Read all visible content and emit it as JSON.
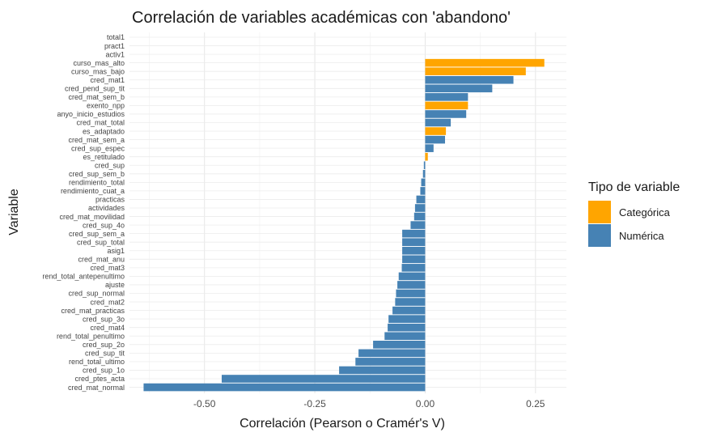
{
  "chart_data": {
    "type": "bar",
    "orientation": "horizontal",
    "title": "Correlación de variables académicas con 'abandono'",
    "xlabel": "Correlación (Pearson o Cramér's V)",
    "ylabel": "Variable",
    "xlim": [
      -0.67,
      0.32
    ],
    "xticks": [
      -0.5,
      -0.25,
      0.0,
      0.25
    ],
    "xtick_labels": [
      "-0.50",
      "-0.25",
      "0.00",
      "0.25"
    ],
    "grid": true,
    "legend": {
      "title": "Tipo de variable",
      "position": "right",
      "entries": [
        {
          "label": "Categórica",
          "color": "#FFA500"
        },
        {
          "label": "Numérica",
          "color": "#4682B4"
        }
      ]
    },
    "colors": {
      "Categórica": "#FFA500",
      "Numérica": "#4682B4"
    },
    "bars": [
      {
        "variable": "total1",
        "value": 0.0,
        "type": "Numérica"
      },
      {
        "variable": "pract1",
        "value": 0.0,
        "type": "Numérica"
      },
      {
        "variable": "activ1",
        "value": 0.0,
        "type": "Numérica"
      },
      {
        "variable": "curso_mas_alto",
        "value": 0.27,
        "type": "Categórica"
      },
      {
        "variable": "curso_mas_bajo",
        "value": 0.228,
        "type": "Categórica"
      },
      {
        "variable": "cred_mat1",
        "value": 0.2,
        "type": "Numérica"
      },
      {
        "variable": "cred_pend_sup_tit",
        "value": 0.152,
        "type": "Numérica"
      },
      {
        "variable": "cred_mat_sem_b",
        "value": 0.097,
        "type": "Numérica"
      },
      {
        "variable": "exento_npp",
        "value": 0.097,
        "type": "Categórica"
      },
      {
        "variable": "anyo_inicio_estudios",
        "value": 0.093,
        "type": "Numérica"
      },
      {
        "variable": "cred_mat_total",
        "value": 0.058,
        "type": "Numérica"
      },
      {
        "variable": "es_adaptado",
        "value": 0.047,
        "type": "Categórica"
      },
      {
        "variable": "cred_mat_sem_a",
        "value": 0.045,
        "type": "Numérica"
      },
      {
        "variable": "cred_sup_espec",
        "value": 0.019,
        "type": "Numérica"
      },
      {
        "variable": "es_retitulado",
        "value": 0.006,
        "type": "Categórica"
      },
      {
        "variable": "cred_sup",
        "value": -0.003,
        "type": "Numérica"
      },
      {
        "variable": "cred_sup_sem_b",
        "value": -0.005,
        "type": "Numérica"
      },
      {
        "variable": "rendimiento_total",
        "value": -0.009,
        "type": "Numérica"
      },
      {
        "variable": "rendimiento_cuat_a",
        "value": -0.011,
        "type": "Numérica"
      },
      {
        "variable": "practicas",
        "value": -0.02,
        "type": "Numérica"
      },
      {
        "variable": "actividades",
        "value": -0.023,
        "type": "Numérica"
      },
      {
        "variable": "cred_mat_movilidad",
        "value": -0.025,
        "type": "Numérica"
      },
      {
        "variable": "cred_sup_4o",
        "value": -0.033,
        "type": "Numérica"
      },
      {
        "variable": "cred_sup_sem_a",
        "value": -0.052,
        "type": "Numérica"
      },
      {
        "variable": "cred_sup_total",
        "value": -0.052,
        "type": "Numérica"
      },
      {
        "variable": "asig1",
        "value": -0.052,
        "type": "Numérica"
      },
      {
        "variable": "cred_mat_anu",
        "value": -0.052,
        "type": "Numérica"
      },
      {
        "variable": "cred_mat3",
        "value": -0.053,
        "type": "Numérica"
      },
      {
        "variable": "rend_total_antepenultimo",
        "value": -0.06,
        "type": "Numérica"
      },
      {
        "variable": "ajuste",
        "value": -0.063,
        "type": "Numérica"
      },
      {
        "variable": "cred_sup_normal",
        "value": -0.066,
        "type": "Numérica"
      },
      {
        "variable": "cred_mat2",
        "value": -0.068,
        "type": "Numérica"
      },
      {
        "variable": "cred_mat_practicas",
        "value": -0.074,
        "type": "Numérica"
      },
      {
        "variable": "cred_sup_3o",
        "value": -0.083,
        "type": "Numérica"
      },
      {
        "variable": "cred_mat4",
        "value": -0.085,
        "type": "Numérica"
      },
      {
        "variable": "rend_total_penultimo",
        "value": -0.092,
        "type": "Numérica"
      },
      {
        "variable": "cred_sup_2o",
        "value": -0.118,
        "type": "Numérica"
      },
      {
        "variable": "cred_sup_tit",
        "value": -0.151,
        "type": "Numérica"
      },
      {
        "variable": "rend_total_ultimo",
        "value": -0.158,
        "type": "Numérica"
      },
      {
        "variable": "cred_sup_1o",
        "value": -0.195,
        "type": "Numérica"
      },
      {
        "variable": "cred_ptes_acta",
        "value": -0.461,
        "type": "Numérica"
      },
      {
        "variable": "cred_mat_normal",
        "value": -0.638,
        "type": "Numérica"
      }
    ]
  }
}
